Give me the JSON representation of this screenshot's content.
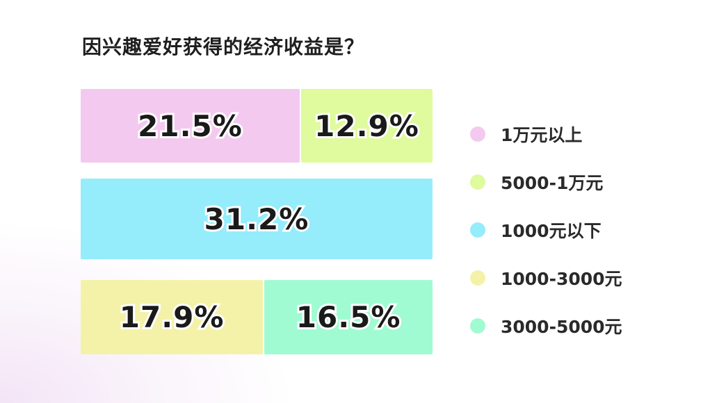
{
  "chart_data": {
    "type": "bar",
    "title": "因兴趣爱好获得的经济收益是？",
    "layout": "stacked-rows",
    "categories": [
      "1万元以上",
      "5000-1万元",
      "1000元以下",
      "1000-3000元",
      "3000-5000元"
    ],
    "values": [
      21.5,
      12.9,
      31.2,
      17.9,
      16.5
    ],
    "labels": [
      "21.5%",
      "12.9%",
      "31.2%",
      "17.9%",
      "16.5%"
    ],
    "rows": [
      [
        0,
        1
      ],
      [
        2
      ],
      [
        3,
        4
      ]
    ],
    "colors": [
      "#f4c9ef",
      "#dffb9d",
      "#95ecfb",
      "#f4f2a9",
      "#a0fbd2"
    ],
    "legend_position": "right",
    "grid": false
  }
}
